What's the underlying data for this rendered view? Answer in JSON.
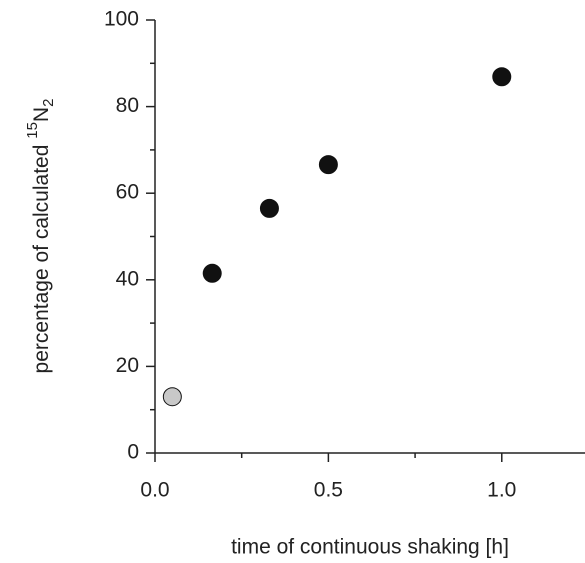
{
  "chart_data": {
    "type": "scatter",
    "x_label": "time of continuous shaking [h]",
    "y_label_parts": [
      "percentage of calculated ",
      "15",
      "N",
      "2"
    ],
    "x": [
      0.05,
      0.165,
      0.33,
      0.5,
      1.0
    ],
    "values": [
      13,
      41.5,
      56.5,
      66.6,
      86.9
    ],
    "point_colors": [
      "#c8c8c8",
      "#111111",
      "#111111",
      "#111111",
      "#111111"
    ],
    "xlim": [
      0,
      1.24
    ],
    "ylim": [
      0,
      100
    ],
    "xticks": [
      {
        "value": 0,
        "label": "0.0"
      },
      {
        "value": 0.5,
        "label": "0.5"
      },
      {
        "value": 1,
        "label": "1.0"
      }
    ],
    "xminorticks": [
      0.25,
      0.75
    ],
    "yticks": [
      0,
      20,
      40,
      60,
      80,
      100
    ],
    "yminorticks": [
      10,
      30,
      50,
      70,
      90
    ],
    "grid": false
  }
}
